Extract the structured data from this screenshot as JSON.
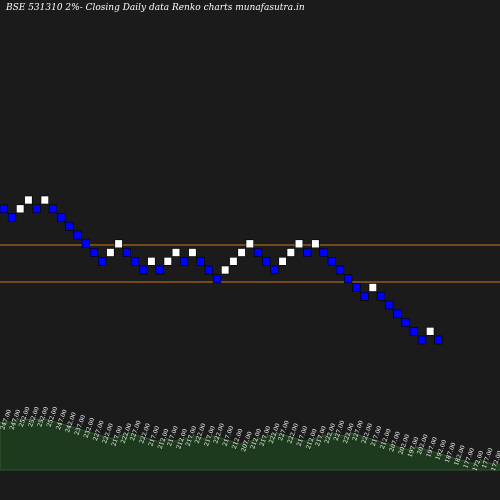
{
  "chart_data": {
    "type": "renko",
    "title": "BSE 531310  2%-  Closing Daily data  Renko  charts munafasutra.in",
    "brick_pct": 2,
    "colors": {
      "up": "#ffffff",
      "down": "#0000ff",
      "line": "#cc7722",
      "area": "#1e3a1e",
      "area_line": "#2c5a2c",
      "label": "#ffffff"
    },
    "reference_levels": [
      222.6,
      195.0
    ],
    "bricks": [
      {
        "dir": "down",
        "level": 247.0
      },
      {
        "dir": "down",
        "level": 242.0
      },
      {
        "dir": "up",
        "level": 247.0
      },
      {
        "dir": "up",
        "level": 252.0
      },
      {
        "dir": "down",
        "level": 247.0
      },
      {
        "dir": "up",
        "level": 252.0
      },
      {
        "dir": "down",
        "level": 247.0
      },
      {
        "dir": "down",
        "level": 242.0
      },
      {
        "dir": "down",
        "level": 237.0
      },
      {
        "dir": "down",
        "level": 232.0
      },
      {
        "dir": "down",
        "level": 227.0
      },
      {
        "dir": "down",
        "level": 222.0
      },
      {
        "dir": "down",
        "level": 217.0
      },
      {
        "dir": "up",
        "level": 222.0
      },
      {
        "dir": "up",
        "level": 227.0
      },
      {
        "dir": "down",
        "level": 222.0
      },
      {
        "dir": "down",
        "level": 217.0
      },
      {
        "dir": "down",
        "level": 212.0
      },
      {
        "dir": "up",
        "level": 217.0
      },
      {
        "dir": "down",
        "level": 212.0
      },
      {
        "dir": "up",
        "level": 217.0
      },
      {
        "dir": "up",
        "level": 222.0
      },
      {
        "dir": "down",
        "level": 217.0
      },
      {
        "dir": "up",
        "level": 222.0
      },
      {
        "dir": "down",
        "level": 217.0
      },
      {
        "dir": "down",
        "level": 212.0
      },
      {
        "dir": "down",
        "level": 207.0
      },
      {
        "dir": "up",
        "level": 212.0
      },
      {
        "dir": "up",
        "level": 217.0
      },
      {
        "dir": "up",
        "level": 222.0
      },
      {
        "dir": "up",
        "level": 227.0
      },
      {
        "dir": "down",
        "level": 222.0
      },
      {
        "dir": "down",
        "level": 217.0
      },
      {
        "dir": "down",
        "level": 212.0
      },
      {
        "dir": "up",
        "level": 217.0
      },
      {
        "dir": "up",
        "level": 222.0
      },
      {
        "dir": "up",
        "level": 227.0
      },
      {
        "dir": "down",
        "level": 222.0
      },
      {
        "dir": "up",
        "level": 227.0
      },
      {
        "dir": "down",
        "level": 222.0
      },
      {
        "dir": "down",
        "level": 217.0
      },
      {
        "dir": "down",
        "level": 212.0
      },
      {
        "dir": "down",
        "level": 207.0
      },
      {
        "dir": "down",
        "level": 202.0
      },
      {
        "dir": "down",
        "level": 197.0
      },
      {
        "dir": "up",
        "level": 202.0
      },
      {
        "dir": "down",
        "level": 197.0
      },
      {
        "dir": "down",
        "level": 192.0
      },
      {
        "dir": "down",
        "level": 187.0
      },
      {
        "dir": "down",
        "level": 182.0
      },
      {
        "dir": "down",
        "level": 177.0
      },
      {
        "dir": "down",
        "level": 172.0
      },
      {
        "dir": "up",
        "level": 177.0
      },
      {
        "dir": "down",
        "level": 172.0
      }
    ],
    "volume_labels": [
      "247.00",
      "247.00",
      "252.00",
      "252.00",
      "252.00",
      "252.00",
      "247.00",
      "242.00",
      "237.00",
      "232.00",
      "227.00",
      "222.00",
      "217.00",
      "222.00",
      "227.00",
      "222.00",
      "217.00",
      "212.00",
      "217.00",
      "212.00",
      "217.00",
      "222.00",
      "217.00",
      "222.00",
      "217.00",
      "212.00",
      "207.00",
      "212.00",
      "217.00",
      "222.00",
      "227.00",
      "222.00",
      "217.00",
      "212.00",
      "217.00",
      "222.00",
      "227.00",
      "222.00",
      "227.00",
      "222.00",
      "217.00",
      "212.00",
      "207.00",
      "202.00",
      "197.00",
      "202.00",
      "197.00",
      "192.00",
      "187.00",
      "182.00",
      "177.00",
      "172.00",
      "177.00",
      "172.00"
    ],
    "price_ylim": [
      160,
      265
    ]
  }
}
